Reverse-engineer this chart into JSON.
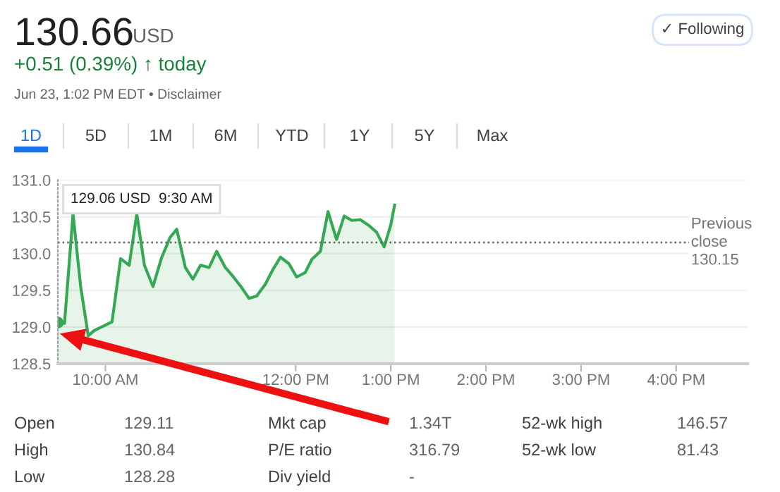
{
  "chart_data": {
    "type": "area",
    "title": "130.66",
    "annotations": [
      "USD",
      "+0.51 (0.39%) ↑ today",
      "Jun 23, 1:02 PM EDT • Disclaimer",
      "1D",
      "5D",
      "1M",
      "6M",
      "YTD",
      "1Y",
      "5Y",
      "Max",
      "✓ Following",
      "Open",
      "129.11",
      "Mkt cap",
      "1.34T",
      "52-wk high",
      "146.57",
      "High",
      "130.84",
      "P/E ratio",
      "316.79",
      "52-wk low",
      "81.43",
      "Low",
      "128.28",
      "Div yield",
      "-",
      "129.06 USD  9:30 AM"
    ],
    "series": [
      {
        "color": "#34a853",
        "x": [
          9.5,
          9.57,
          9.66,
          9.74,
          9.82,
          9.88,
          10.07,
          10.16,
          10.25,
          10.33,
          10.41,
          10.5,
          10.59,
          10.68,
          10.75,
          10.84,
          10.92,
          11.0,
          11.09,
          11.17,
          11.26,
          11.34,
          11.43,
          11.51,
          11.59,
          11.68,
          11.76,
          11.84,
          11.93,
          12.01,
          12.1,
          12.17,
          12.26,
          12.34,
          12.43,
          12.51,
          12.59,
          12.68,
          12.77,
          12.85,
          12.93,
          13.0,
          13.04
        ],
        "values": [
          129.06,
          129.05,
          130.54,
          129.55,
          128.88,
          128.95,
          129.07,
          129.93,
          129.84,
          130.54,
          129.84,
          129.55,
          129.94,
          130.22,
          130.33,
          129.81,
          129.65,
          129.84,
          129.81,
          130.03,
          129.81,
          129.69,
          129.54,
          129.39,
          129.42,
          129.58,
          129.78,
          129.95,
          129.86,
          129.68,
          129.74,
          129.92,
          130.03,
          130.57,
          130.19,
          130.51,
          130.45,
          130.46,
          130.38,
          130.29,
          130.09,
          130.39,
          130.66
        ]
      }
    ],
    "xlim": [
      9.5,
      16.75
    ],
    "xticks": [
      {
        "value": 10,
        "label": "10:00 AM"
      },
      {
        "value": 12,
        "label": "12:00 PM"
      },
      {
        "value": 13,
        "label": "1:00 PM"
      },
      {
        "value": 14,
        "label": "2:00 PM"
      },
      {
        "value": 15,
        "label": "3:00 PM"
      },
      {
        "value": 16,
        "label": "4:00 PM"
      }
    ],
    "ylim": [
      128.5,
      131.0
    ],
    "yticks": [
      128.5,
      {
        "value": 129,
        "label": "129.0"
      },
      129.5,
      {
        "value": 130,
        "label": "130.0"
      },
      130.5,
      {
        "value": 131,
        "label": "131.0"
      }
    ],
    "ref_lines": [
      {
        "axis": "y",
        "value": 130.15,
        "label": "Previous\nclose\n130.15",
        "color": "#5f6368",
        "line_style": "dotted"
      }
    ],
    "grid": "y",
    "legend": false
  }
}
